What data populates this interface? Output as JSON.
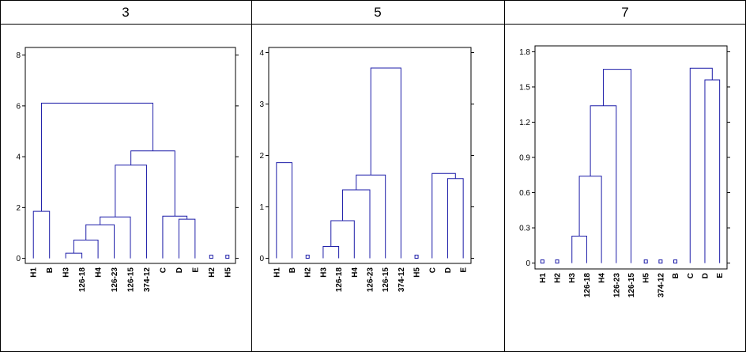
{
  "table": {
    "headers": [
      "3",
      "5",
      "7"
    ]
  },
  "chart_data": [
    {
      "type": "dendrogram",
      "categories": [
        "H1",
        "B",
        "H3",
        "126-18",
        "H4",
        "126-23",
        "126-15",
        "374-12",
        "C",
        "D",
        "E",
        "H2",
        "H5"
      ],
      "ylim": [
        -0.2,
        8.3
      ],
      "yticks": [
        0,
        2,
        4,
        6,
        8
      ],
      "color": "#1c1ca8",
      "merges": [
        {
          "left": 0,
          "right": 1,
          "height": 1.85
        },
        {
          "left": 2,
          "right": 3,
          "height": 0.2
        },
        {
          "left": 14,
          "right": 4,
          "height": 0.72
        },
        {
          "left": 15,
          "right": 5,
          "height": 1.32
        },
        {
          "left": 16,
          "right": 6,
          "height": 1.63
        },
        {
          "left": 17,
          "right": 7,
          "height": 3.67
        },
        {
          "left": 9,
          "right": 10,
          "height": 1.54
        },
        {
          "left": 8,
          "right": 19,
          "height": 1.66
        },
        {
          "left": 18,
          "right": 20,
          "height": 4.23
        },
        {
          "left": 13,
          "right": 21,
          "height": 6.11
        }
      ]
    },
    {
      "type": "dendrogram",
      "categories": [
        "H1",
        "B",
        "H2",
        "H3",
        "126-18",
        "H4",
        "126-23",
        "126-15",
        "374-12",
        "H5",
        "C",
        "D",
        "E"
      ],
      "ylim": [
        -0.1,
        4.1
      ],
      "yticks": [
        0,
        1,
        2,
        3,
        4
      ],
      "color": "#1c1ca8",
      "merges": [
        {
          "left": 0,
          "right": 1,
          "height": 1.86
        },
        {
          "left": 3,
          "right": 4,
          "height": 0.23
        },
        {
          "left": 14,
          "right": 5,
          "height": 0.73
        },
        {
          "left": 15,
          "right": 6,
          "height": 1.33
        },
        {
          "left": 16,
          "right": 7,
          "height": 1.62
        },
        {
          "left": 17,
          "right": 8,
          "height": 3.7
        },
        {
          "left": 11,
          "right": 12,
          "height": 1.55
        },
        {
          "left": 10,
          "right": 19,
          "height": 1.65
        }
      ]
    },
    {
      "type": "dendrogram",
      "categories": [
        "H1",
        "H2",
        "H3",
        "126-18",
        "H4",
        "126-23",
        "126-15",
        "H5",
        "374-12",
        "B",
        "C",
        "D",
        "E"
      ],
      "ylim": [
        -0.05,
        1.85
      ],
      "yticks": [
        0,
        0.3,
        0.6,
        0.9,
        1.2,
        1.5,
        1.8
      ],
      "color": "#1c1ca8",
      "merges": [
        {
          "left": 2,
          "right": 3,
          "height": 0.23
        },
        {
          "left": 13,
          "right": 4,
          "height": 0.74
        },
        {
          "left": 14,
          "right": 5,
          "height": 1.34
        },
        {
          "left": 15,
          "right": 6,
          "height": 1.65
        },
        {
          "left": 11,
          "right": 12,
          "height": 1.56
        },
        {
          "left": 10,
          "right": 17,
          "height": 1.66
        }
      ]
    }
  ]
}
